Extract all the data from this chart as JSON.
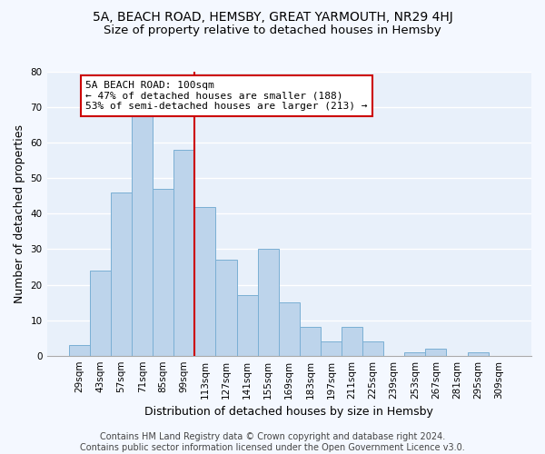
{
  "title_line1": "5A, BEACH ROAD, HEMSBY, GREAT YARMOUTH, NR29 4HJ",
  "title_line2": "Size of property relative to detached houses in Hemsby",
  "xlabel": "Distribution of detached houses by size in Hemsby",
  "ylabel": "Number of detached properties",
  "categories": [
    "29sqm",
    "43sqm",
    "57sqm",
    "71sqm",
    "85sqm",
    "99sqm",
    "113sqm",
    "127sqm",
    "141sqm",
    "155sqm",
    "169sqm",
    "183sqm",
    "197sqm",
    "211sqm",
    "225sqm",
    "239sqm",
    "253sqm",
    "267sqm",
    "281sqm",
    "295sqm",
    "309sqm"
  ],
  "values": [
    3,
    24,
    46,
    68,
    47,
    58,
    42,
    27,
    17,
    30,
    15,
    8,
    4,
    8,
    4,
    0,
    1,
    2,
    0,
    1,
    0
  ],
  "bar_color": "#bdd4eb",
  "bar_edge_color": "#7aafd4",
  "vline_x_idx": 5,
  "vline_color": "#cc0000",
  "annotation_text": "5A BEACH ROAD: 100sqm\n← 47% of detached houses are smaller (188)\n53% of semi-detached houses are larger (213) →",
  "annotation_box_color": "#ffffff",
  "annotation_box_edge": "#cc0000",
  "ylim": [
    0,
    80
  ],
  "yticks": [
    0,
    10,
    20,
    30,
    40,
    50,
    60,
    70,
    80
  ],
  "footnote": "Contains HM Land Registry data © Crown copyright and database right 2024.\nContains public sector information licensed under the Open Government Licence v3.0.",
  "bg_color": "#e8f0fa",
  "fig_bg_color": "#f4f8ff",
  "grid_color": "#ffffff",
  "title_fontsize": 10,
  "subtitle_fontsize": 9.5,
  "label_fontsize": 9,
  "tick_fontsize": 7.5,
  "footnote_fontsize": 7,
  "annot_fontsize": 8
}
